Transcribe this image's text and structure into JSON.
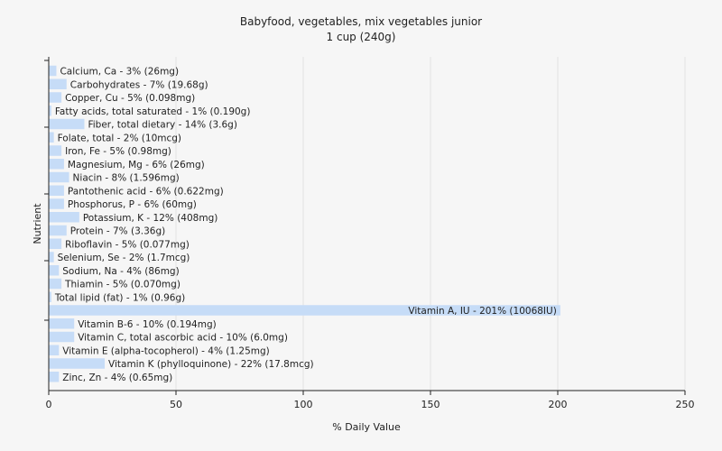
{
  "chart_data": {
    "type": "bar",
    "orientation": "horizontal",
    "title": "Babyfood, vegetables, mix vegetables junior",
    "subtitle": "1 cup (240g)",
    "xlabel": "% Daily Value",
    "ylabel": "Nutrient",
    "xlim": [
      0,
      250
    ],
    "xticks": [
      0,
      50,
      100,
      150,
      200,
      250
    ],
    "grid": true,
    "bar_color": "#c6dcf7",
    "categories": [
      "Calcium, Ca - 3% (26mg)",
      "Carbohydrates - 7% (19.68g)",
      "Copper, Cu - 5% (0.098mg)",
      "Fatty acids, total saturated - 1% (0.190g)",
      "Fiber, total dietary - 14% (3.6g)",
      "Folate, total - 2% (10mcg)",
      "Iron, Fe - 5% (0.98mg)",
      "Magnesium, Mg - 6% (26mg)",
      "Niacin - 8% (1.596mg)",
      "Pantothenic acid - 6% (0.622mg)",
      "Phosphorus, P - 6% (60mg)",
      "Potassium, K - 12% (408mg)",
      "Protein - 7% (3.36g)",
      "Riboflavin - 5% (0.077mg)",
      "Selenium, Se - 2% (1.7mcg)",
      "Sodium, Na - 4% (86mg)",
      "Thiamin - 5% (0.070mg)",
      "Total lipid (fat) - 1% (0.96g)",
      "Vitamin A, IU - 201% (10068IU)",
      "Vitamin B-6 - 10% (0.194mg)",
      "Vitamin C, total ascorbic acid - 10% (6.0mg)",
      "Vitamin E (alpha-tocopherol) - 4% (1.25mg)",
      "Vitamin K (phylloquinone) - 22% (17.8mcg)",
      "Zinc, Zn - 4% (0.65mg)"
    ],
    "values": [
      3,
      7,
      5,
      1,
      14,
      2,
      5,
      6,
      8,
      6,
      6,
      12,
      7,
      5,
      2,
      4,
      5,
      1,
      201,
      10,
      10,
      4,
      22,
      4
    ]
  }
}
